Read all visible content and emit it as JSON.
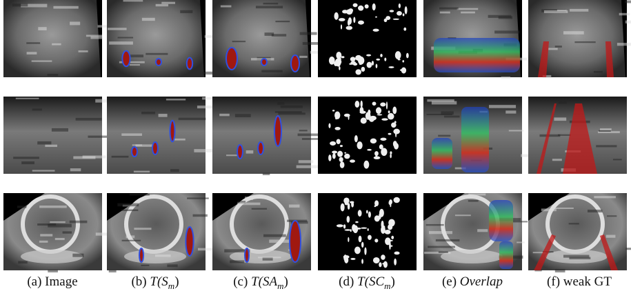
{
  "captions": [
    {
      "label": "(a)",
      "text": "Image"
    },
    {
      "label": "(b)",
      "math": {
        "base": "T(S",
        "sub": "m",
        "close": ")"
      }
    },
    {
      "label": "(c)",
      "math": {
        "base": "T(SA",
        "sub": "m",
        "close": ")"
      }
    },
    {
      "label": "(d)",
      "math": {
        "base": "T(SC",
        "sub": "m",
        "close": ")"
      }
    },
    {
      "label": "(e)",
      "italic": "Overlap"
    },
    {
      "label": "(f)",
      "text": "weak GT"
    }
  ]
}
